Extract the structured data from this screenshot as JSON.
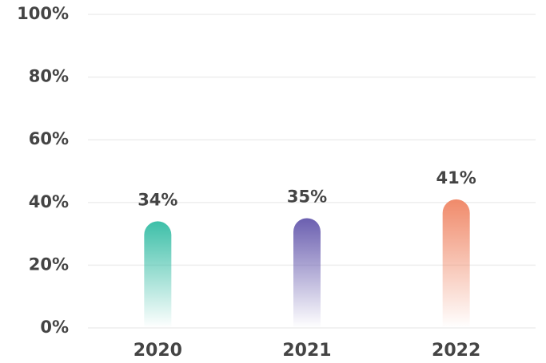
{
  "chart_data": {
    "type": "bar",
    "categories": [
      "2020",
      "2021",
      "2022"
    ],
    "values": [
      34,
      35,
      41
    ],
    "value_labels": [
      "34%",
      "35%",
      "41%"
    ],
    "colors": [
      "#3dbfa8",
      "#6b5fb0",
      "#f08a6a"
    ],
    "ylim": [
      0,
      100
    ],
    "yticks": [
      {
        "value": 0,
        "label": "0%"
      },
      {
        "value": 20,
        "label": "20%"
      },
      {
        "value": 40,
        "label": "40%"
      },
      {
        "value": 60,
        "label": "60%"
      },
      {
        "value": 80,
        "label": "80%"
      },
      {
        "value": 100,
        "label": "100%"
      }
    ],
    "grid": true
  }
}
